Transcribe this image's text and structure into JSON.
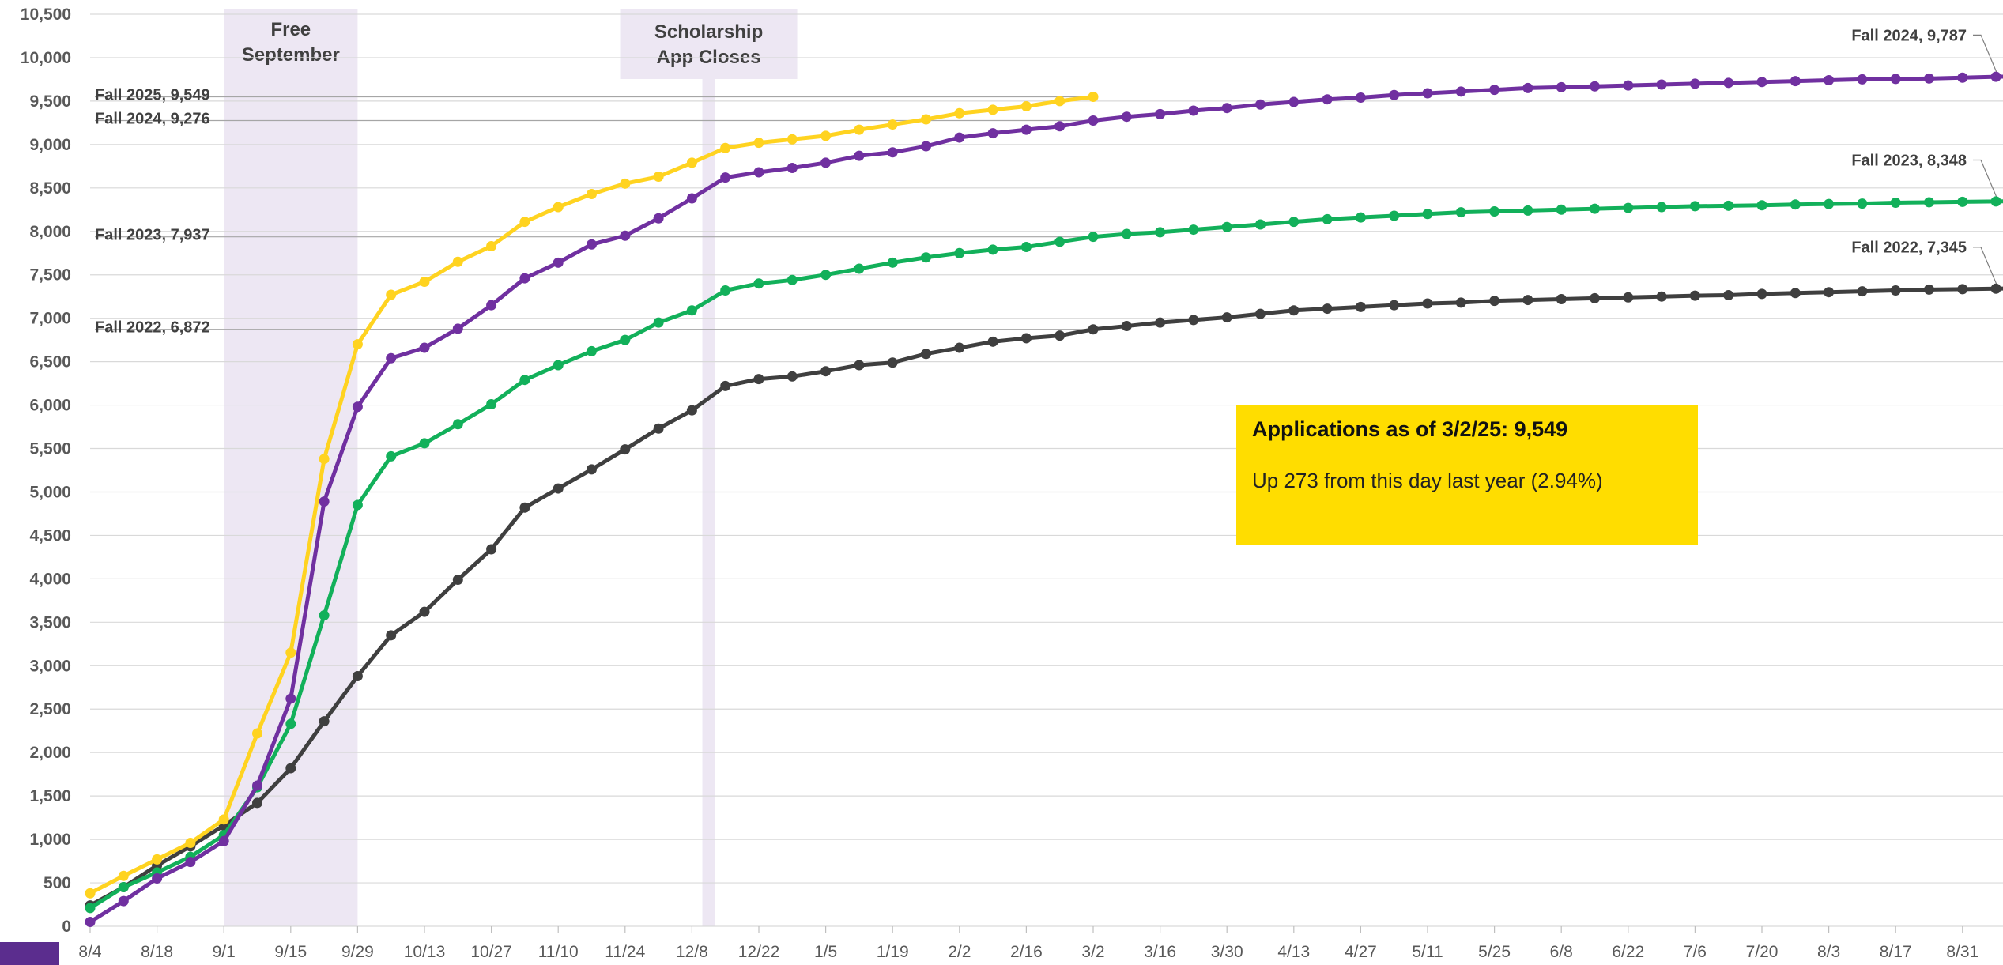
{
  "chart_data": {
    "type": "line",
    "title": "",
    "xlabel": "",
    "ylabel": "",
    "ylim": [
      0,
      10500
    ],
    "ytick_step": 500,
    "grid": true,
    "x_labels": [
      "8/4",
      "8/18",
      "9/1",
      "9/15",
      "9/29",
      "10/13",
      "10/27",
      "11/10",
      "11/24",
      "12/8",
      "12/22",
      "1/5",
      "1/19",
      "2/2",
      "2/16",
      "3/2",
      "3/16",
      "3/30",
      "4/13",
      "4/27",
      "5/11",
      "5/25",
      "6/8",
      "6/22",
      "7/6",
      "7/20",
      "8/3",
      "8/17",
      "8/31"
    ],
    "series": [
      {
        "key": "f2022",
        "color": "#3F3F3F",
        "values": [
          240,
          450,
          700,
          920,
          1160,
          1420,
          1820,
          2360,
          2880,
          3350,
          3620,
          3990,
          4340,
          4820,
          5040,
          5260,
          5490,
          5730,
          5940,
          6220,
          6300,
          6330,
          6390,
          6460,
          6490,
          6590,
          6660,
          6730,
          6770,
          6800,
          6872,
          6910,
          6950,
          6980,
          7010,
          7050,
          7090,
          7110,
          7130,
          7150,
          7170,
          7180,
          7200,
          7210,
          7220,
          7230,
          7240,
          7250,
          7260,
          7265,
          7280,
          7290,
          7300,
          7310,
          7320,
          7330,
          7335,
          7340,
          7345
        ]
      },
      {
        "key": "f2023",
        "color": "#12B05A",
        "values": [
          210,
          450,
          620,
          800,
          1050,
          1600,
          2330,
          3580,
          4850,
          5410,
          5560,
          5780,
          6010,
          6290,
          6460,
          6620,
          6750,
          6950,
          7090,
          7320,
          7400,
          7440,
          7500,
          7570,
          7640,
          7700,
          7750,
          7790,
          7820,
          7880,
          7937,
          7970,
          7990,
          8020,
          8050,
          8080,
          8110,
          8140,
          8160,
          8180,
          8200,
          8220,
          8230,
          8240,
          8250,
          8260,
          8270,
          8280,
          8290,
          8295,
          8300,
          8310,
          8315,
          8320,
          8330,
          8335,
          8340,
          8345,
          8348
        ]
      },
      {
        "key": "f2024",
        "color": "#7030A0",
        "values": [
          50,
          290,
          550,
          740,
          980,
          1620,
          2620,
          4890,
          5980,
          6540,
          6660,
          6880,
          7150,
          7460,
          7640,
          7850,
          7950,
          8150,
          8380,
          8620,
          8680,
          8730,
          8790,
          8870,
          8910,
          8980,
          9080,
          9130,
          9170,
          9210,
          9276,
          9320,
          9350,
          9390,
          9420,
          9460,
          9490,
          9520,
          9540,
          9570,
          9590,
          9610,
          9630,
          9650,
          9660,
          9670,
          9680,
          9690,
          9700,
          9710,
          9720,
          9730,
          9740,
          9750,
          9755,
          9760,
          9770,
          9780,
          9787
        ]
      },
      {
        "key": "f2025",
        "color": "#FFD320",
        "values": [
          380,
          580,
          770,
          960,
          1230,
          2220,
          3150,
          5380,
          6700,
          7270,
          7420,
          7650,
          7830,
          8110,
          8280,
          8430,
          8550,
          8630,
          8790,
          8960,
          9020,
          9060,
          9100,
          9170,
          9230,
          9290,
          9360,
          9400,
          9440,
          9500,
          9549
        ]
      }
    ],
    "callouts": [
      {
        "text": "Fall 2025, 9,549",
        "value": 9549,
        "side": "left"
      },
      {
        "text": "Fall 2024, 9,276",
        "value": 9276,
        "side": "left"
      },
      {
        "text": "Fall 2023, 7,937",
        "value": 7937,
        "side": "left"
      },
      {
        "text": "Fall 2022, 6,872",
        "value": 6872,
        "side": "left"
      },
      {
        "text": "Fall 2024, 9,787",
        "value": 9787,
        "side": "right"
      },
      {
        "text": "Fall 2023, 8,348",
        "value": 8348,
        "side": "right"
      },
      {
        "text": "Fall 2022, 7,345",
        "value": 7345,
        "side": "right"
      }
    ],
    "shaded_regions": [
      {
        "lines": [
          "Free",
          "September"
        ],
        "x_from": "9/1",
        "x_to": "9/29"
      },
      {
        "lines": [
          "Scholarship",
          "App Closes"
        ],
        "x_at": "12/15"
      }
    ]
  },
  "info_box": {
    "title": "Applications as of 3/2/25: 9,549",
    "subtitle": "Up 273 from this day last year (2.94%)"
  },
  "colors": {
    "band": "#EDE7F3",
    "grid": "#D9D9D9",
    "axis_text": "#595959",
    "info_box": "#FFDD00",
    "corner_swatch": "#5B2D8E"
  }
}
